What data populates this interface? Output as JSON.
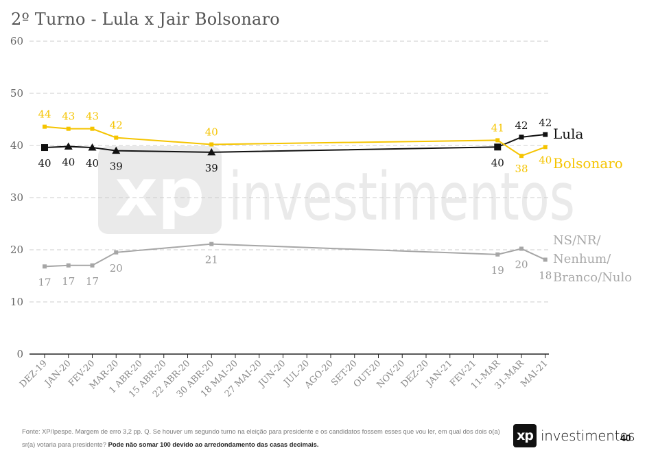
{
  "title": "2º Turno - Lula x Jair Bolsonaro",
  "footer": {
    "text": "Fonte: XP/Ipespe. Margem de erro 3,2 pp. Q. Se houver um segundo turno na eleição para presidente e os candidatos fossem esses que vou ler, em qual dos dois o(a) sr(a) votaria para presidente?",
    "bold": "Pode não somar 100 devido ao arredondamento das casas decimais."
  },
  "logo": {
    "mark": "xp",
    "word": "investimentos",
    "watermark_mark": "xp",
    "watermark_word": "investimentos"
  },
  "page_number": "40",
  "colors": {
    "lula": "#111111",
    "bolsonaro": "#f5c400",
    "ns": "#a6a6a6",
    "grid": "#cccccc"
  },
  "chart_data": {
    "type": "line",
    "title": "2º Turno - Lula x Jair Bolsonaro",
    "ylim": [
      0,
      60
    ],
    "yticks": [
      0,
      10,
      20,
      30,
      40,
      50,
      60
    ],
    "grid": true,
    "legend_placement": "right",
    "categories": [
      "DEZ-19",
      "JAN-20",
      "FEV-20",
      "MAR-20",
      "1 ABR-20",
      "15 ABR-20",
      "22 ABR-20",
      "30 ABR-20",
      "18 MAI-20",
      "27 MAI-20",
      "JUN-20",
      "JUL-20",
      "AGO-20",
      "SET-20",
      "OUT-20",
      "NOV-20",
      "DEZ-20",
      "JAN-21",
      "FEV-21",
      "11-MAR",
      "31-MAR",
      "MAI-21"
    ],
    "series": [
      {
        "name": "Lula",
        "color": "#111111",
        "points": [
          {
            "x": "DEZ-19",
            "y": 39.6,
            "label": "40",
            "marker": "square"
          },
          {
            "x": "JAN-20",
            "y": 39.8,
            "label": "40",
            "marker": "triangle"
          },
          {
            "x": "FEV-20",
            "y": 39.6,
            "label": "40",
            "marker": "triangle"
          },
          {
            "x": "MAR-20",
            "y": 39.0,
            "label": "39",
            "marker": "triangle"
          },
          {
            "x": "30 ABR-20",
            "y": 38.7,
            "label": "39",
            "marker": "triangle"
          },
          {
            "x": "11-MAR",
            "y": 39.7,
            "label": "40",
            "marker": "square"
          },
          {
            "x": "31-MAR",
            "y": 41.6,
            "label": "42",
            "marker": "square"
          },
          {
            "x": "MAI-21",
            "y": 42.1,
            "label": "42",
            "marker": "square"
          }
        ]
      },
      {
        "name": "Bolsonaro",
        "color": "#f5c400",
        "points": [
          {
            "x": "DEZ-19",
            "y": 43.6,
            "label": "44",
            "marker": "square"
          },
          {
            "x": "JAN-20",
            "y": 43.2,
            "label": "43",
            "marker": "square"
          },
          {
            "x": "FEV-20",
            "y": 43.2,
            "label": "43",
            "marker": "square"
          },
          {
            "x": "MAR-20",
            "y": 41.5,
            "label": "42",
            "marker": "square"
          },
          {
            "x": "30 ABR-20",
            "y": 40.2,
            "label": "40",
            "marker": "square"
          },
          {
            "x": "11-MAR",
            "y": 41.0,
            "label": "41",
            "marker": "square"
          },
          {
            "x": "31-MAR",
            "y": 38.0,
            "label": "38",
            "marker": "square"
          },
          {
            "x": "MAI-21",
            "y": 39.7,
            "label": "40",
            "marker": "square"
          }
        ]
      },
      {
        "name": "NS/NR/ Nenhum/ Branco/Nulo",
        "legend_lines": [
          "NS/NR/",
          "Nenhum/",
          "Branco/Nulo"
        ],
        "color": "#a6a6a6",
        "points": [
          {
            "x": "DEZ-19",
            "y": 16.8,
            "label": "17",
            "marker": "square"
          },
          {
            "x": "JAN-20",
            "y": 17.0,
            "label": "17",
            "marker": "square"
          },
          {
            "x": "FEV-20",
            "y": 17.0,
            "label": "17",
            "marker": "square"
          },
          {
            "x": "MAR-20",
            "y": 19.5,
            "label": "20",
            "marker": "square"
          },
          {
            "x": "30 ABR-20",
            "y": 21.1,
            "label": "21",
            "marker": "square"
          },
          {
            "x": "11-MAR",
            "y": 19.1,
            "label": "19",
            "marker": "square"
          },
          {
            "x": "31-MAR",
            "y": 20.2,
            "label": "20",
            "marker": "square"
          },
          {
            "x": "MAI-21",
            "y": 18.1,
            "label": "18",
            "marker": "square"
          }
        ]
      }
    ]
  }
}
